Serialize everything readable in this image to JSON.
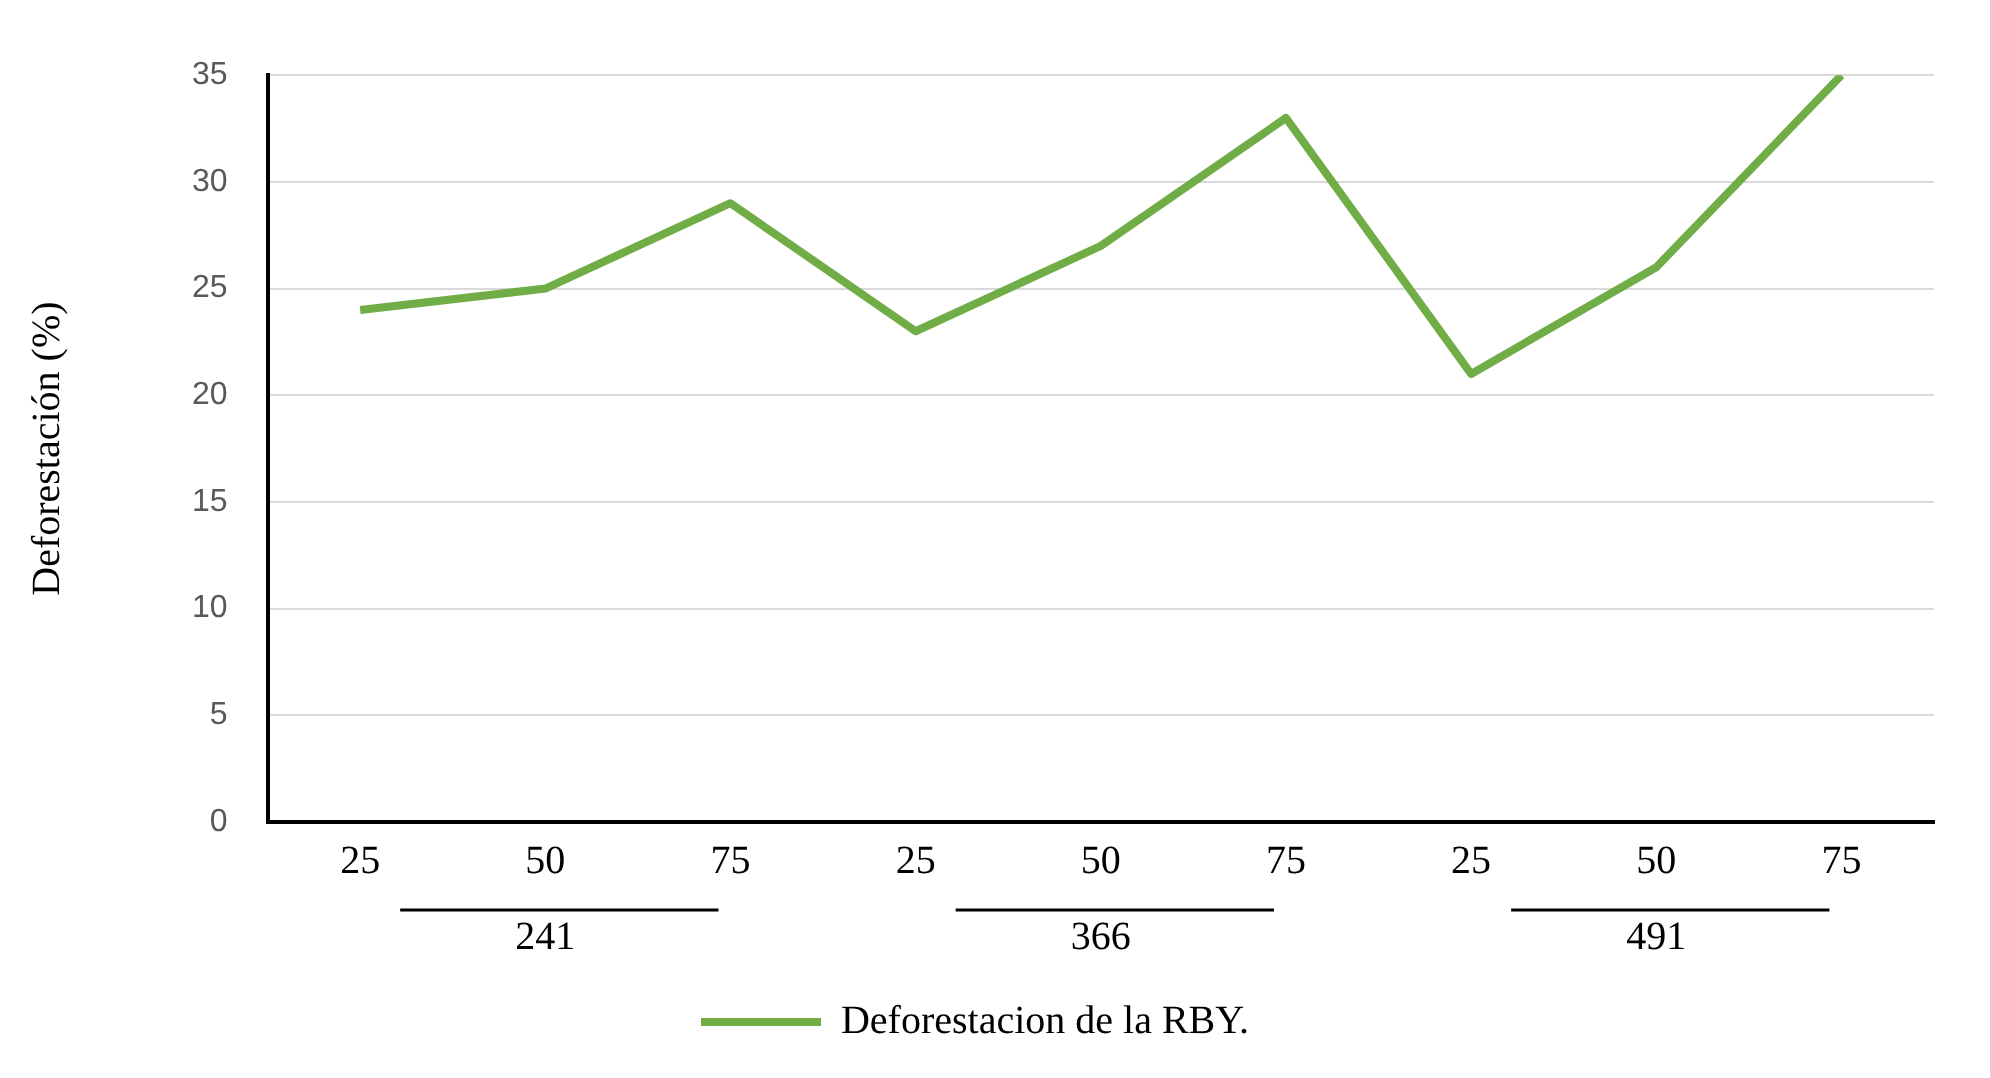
{
  "chart_data": {
    "type": "line",
    "ylabel": "Deforestación (%)",
    "categories": [
      "25",
      "50",
      "75",
      "25",
      "50",
      "75",
      "25",
      "50",
      "75"
    ],
    "series": [
      {
        "name": "Deforestacion de la RBY.",
        "color": "#70ad47",
        "values": [
          24,
          25,
          29,
          23,
          27,
          33,
          21,
          26,
          35
        ]
      }
    ],
    "annotations": [
      "241",
      "366",
      "491"
    ],
    "ylim": [
      0,
      35
    ],
    "yticks": [
      0,
      5,
      10,
      15,
      20,
      25,
      30,
      35
    ],
    "grid": "y",
    "legend": "bottom",
    "marker": "none",
    "line_style": "solid"
  }
}
